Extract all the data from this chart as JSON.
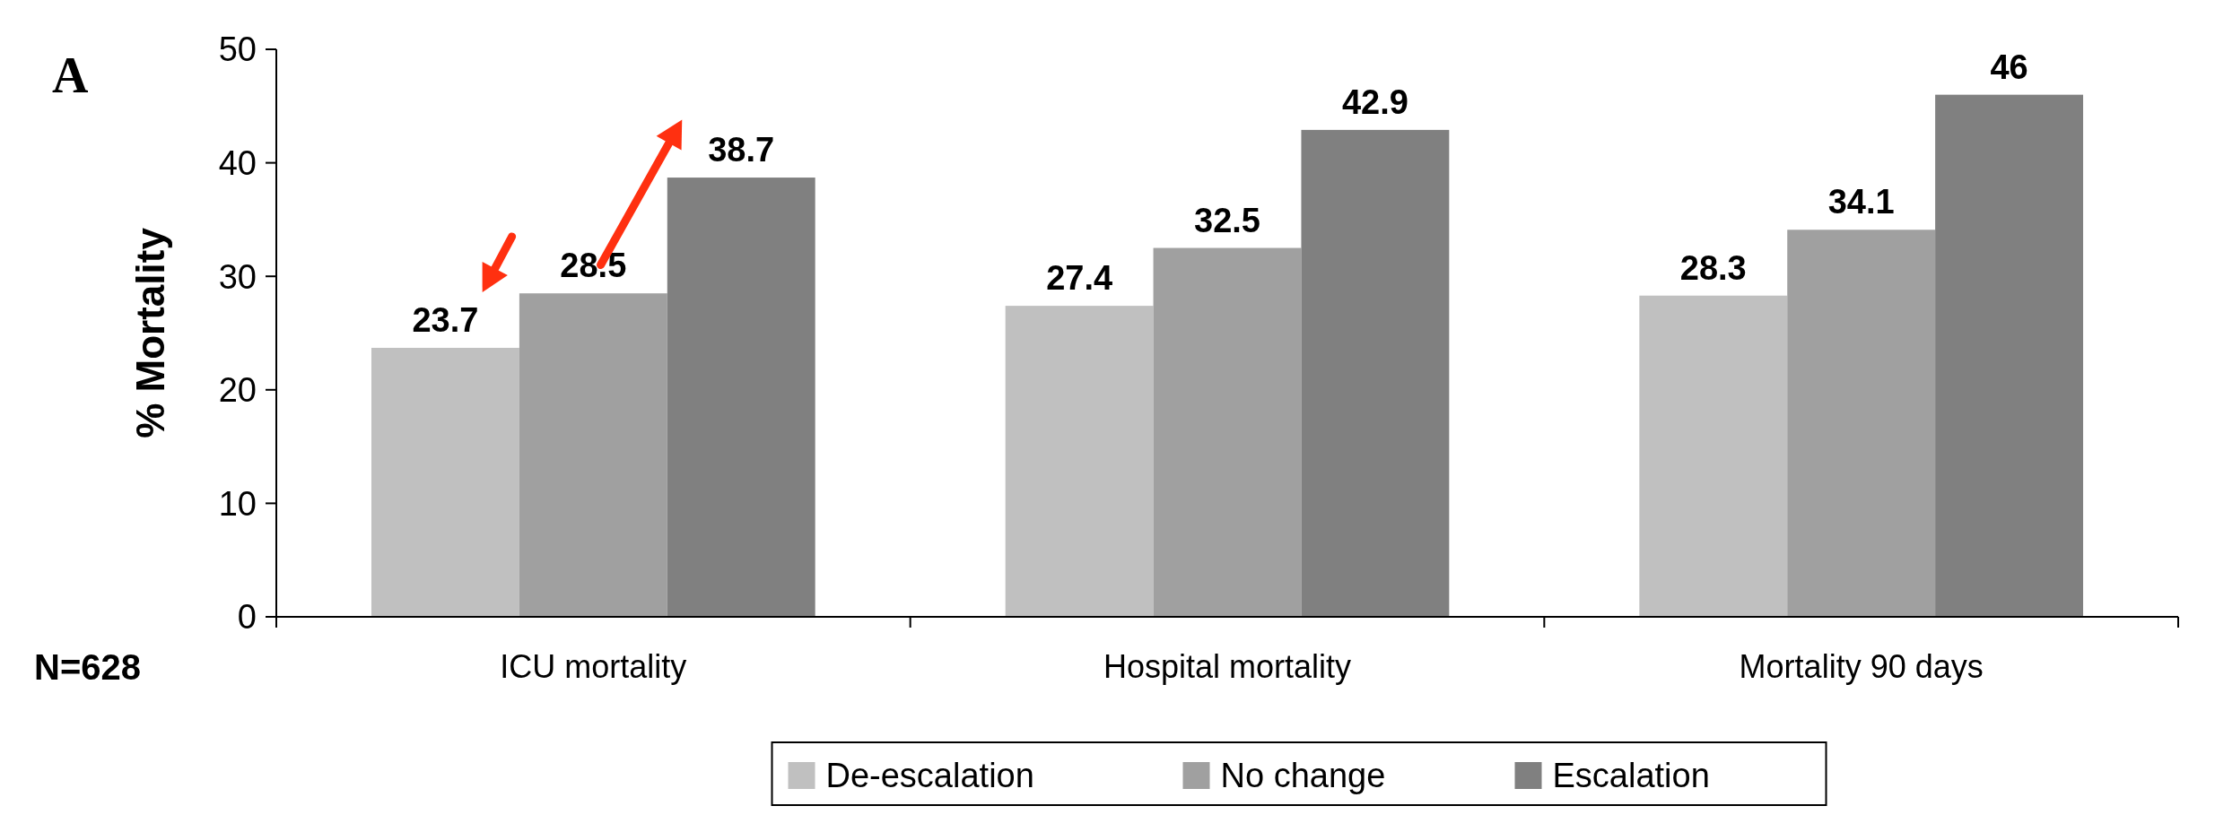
{
  "chart_data": {
    "type": "bar",
    "title": "A",
    "ylabel": "% Mortality",
    "categories": [
      "ICU mortality",
      "Hospital mortality",
      "Mortality 90 days"
    ],
    "series": [
      {
        "name": "De-escalation",
        "color": "#c0c0c0",
        "values": [
          23.7,
          27.4,
          28.3
        ]
      },
      {
        "name": "No change",
        "color": "#a0a0a0",
        "values": [
          28.5,
          32.5,
          34.1
        ]
      },
      {
        "name": "Escalation",
        "color": "#808080",
        "values": [
          38.7,
          42.9,
          46
        ]
      }
    ],
    "ylim": [
      0,
      50
    ],
    "yticks": [
      0,
      10,
      20,
      30,
      40,
      50
    ],
    "data_labels": true,
    "legend": "bottom",
    "annotations": [
      "N=628"
    ]
  }
}
